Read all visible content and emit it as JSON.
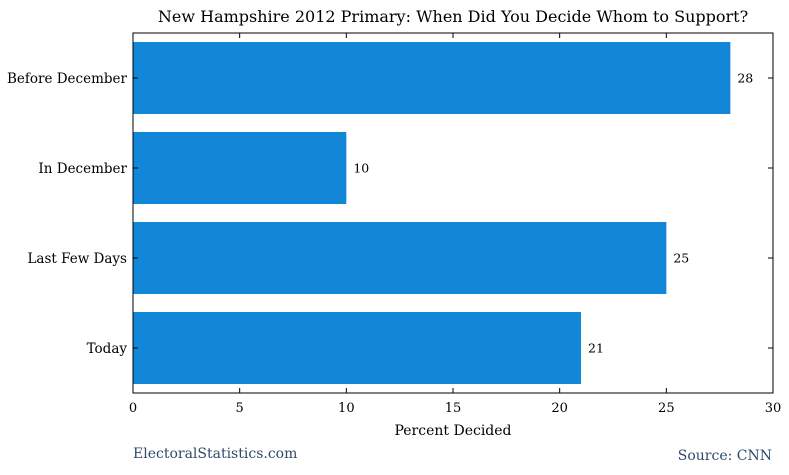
{
  "chart_data": {
    "type": "bar",
    "orientation": "horizontal",
    "title": "New Hampshire 2012 Primary: When Did You Decide Whom to Support?",
    "xlabel": "Percent Decided",
    "ylabel": "",
    "categories": [
      "Before December",
      "In December",
      "Last Few Days",
      "Today"
    ],
    "values": [
      28,
      10,
      25,
      21
    ],
    "value_labels": [
      "28",
      "10",
      "25",
      "21"
    ],
    "xlim": [
      0,
      30
    ],
    "xticks": [
      0,
      5,
      10,
      15,
      20,
      25,
      30
    ],
    "xtick_labels": [
      "0",
      "5",
      "10",
      "15",
      "20",
      "25",
      "30"
    ],
    "grid": false,
    "bar_color": "#1287d8"
  },
  "footer": {
    "site": "ElectoralStatistics.com",
    "source": "Source: CNN"
  }
}
